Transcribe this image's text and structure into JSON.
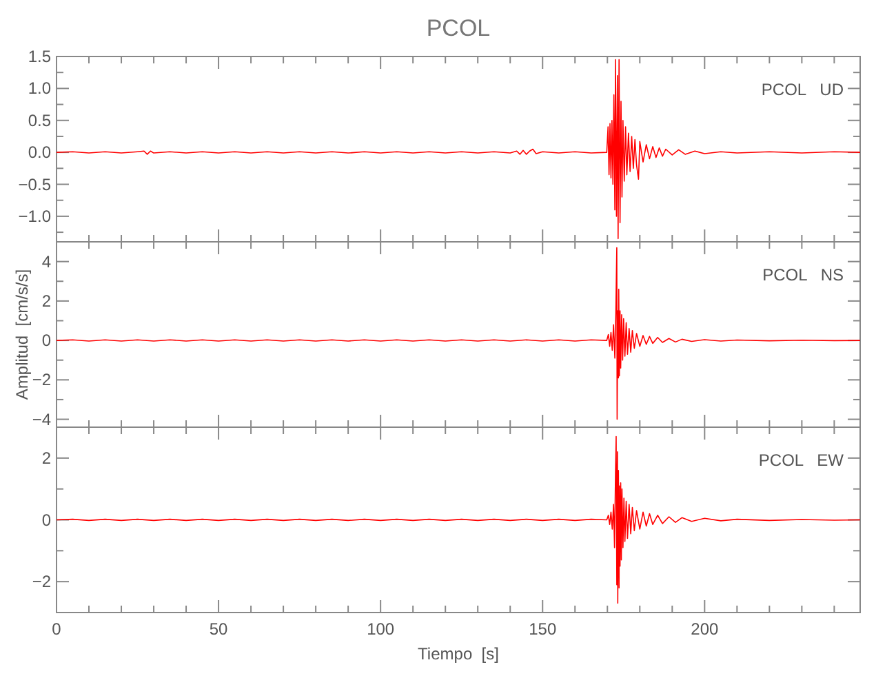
{
  "chart_data": [
    {
      "type": "line",
      "title": "PCOL",
      "annotations": [
        "PCOL   UD"
      ],
      "color": "#ff0000",
      "xlim": [
        0,
        248
      ],
      "ylim": [
        -1.4,
        1.5
      ],
      "tick_labels": "y",
      "xticks": [
        0,
        {
          "value": 10,
          "label": null
        },
        {
          "value": 20,
          "label": null
        },
        {
          "value": 30,
          "label": null
        },
        {
          "value": 40,
          "label": null
        },
        50,
        {
          "value": 60,
          "label": null
        },
        {
          "value": 70,
          "label": null
        },
        {
          "value": 80,
          "label": null
        },
        {
          "value": 90,
          "label": null
        },
        100,
        {
          "value": 110,
          "label": null
        },
        {
          "value": 120,
          "label": null
        },
        {
          "value": 130,
          "label": null
        },
        {
          "value": 140,
          "label": null
        },
        150,
        {
          "value": 160,
          "label": null
        },
        {
          "value": 170,
          "label": null
        },
        {
          "value": 180,
          "label": null
        },
        {
          "value": 190,
          "label": null
        },
        200,
        {
          "value": 210,
          "label": null
        },
        {
          "value": 220,
          "label": null
        },
        {
          "value": 230,
          "label": null
        },
        {
          "value": 240,
          "label": null
        }
      ],
      "yticks": [
        {
          "value": -1.25,
          "label": null
        },
        {
          "value": -1,
          "label": "−1.0"
        },
        {
          "value": -0.75,
          "label": null
        },
        {
          "value": -0.5,
          "label": "−0.5"
        },
        {
          "value": -0.25,
          "label": null
        },
        {
          "value": 0,
          "label": "0.0"
        },
        {
          "value": 0.25,
          "label": null
        },
        {
          "value": 0.5,
          "label": "0.5"
        },
        {
          "value": 0.75,
          "label": null
        },
        {
          "value": 1,
          "label": "1.0"
        },
        {
          "value": 1.25,
          "label": null
        },
        {
          "value": 1.5,
          "label": "1.5"
        }
      ],
      "x": [
        0,
        5,
        10,
        15,
        20,
        25,
        27,
        28,
        29,
        30,
        35,
        40,
        45,
        50,
        55,
        60,
        65,
        70,
        75,
        80,
        85,
        90,
        95,
        100,
        105,
        110,
        115,
        120,
        125,
        130,
        135,
        140,
        142,
        143,
        144,
        145,
        146,
        147,
        148,
        150,
        155,
        160,
        165,
        169.8,
        170.2,
        170.5,
        170.8,
        171.1,
        171.4,
        171.7,
        172,
        172.3,
        172.5,
        172.8,
        173.1,
        173.3,
        173.6,
        173.9,
        174.2,
        174.5,
        174.8,
        175.2,
        175.6,
        176,
        176.5,
        177,
        177.5,
        178,
        178.5,
        179,
        179.6,
        180,
        181,
        182,
        183,
        184,
        185,
        186,
        187,
        188,
        190,
        192,
        194,
        197,
        200,
        205,
        210,
        220,
        230,
        240,
        248
      ],
      "values": [
        0,
        0.01,
        -0.01,
        0.01,
        -0.01,
        0.01,
        0.02,
        -0.03,
        0.02,
        -0.01,
        0.01,
        -0.01,
        0.01,
        -0.01,
        0.01,
        -0.01,
        0.01,
        -0.01,
        0.01,
        -0.01,
        0.01,
        -0.01,
        0.01,
        -0.01,
        0.01,
        -0.01,
        0.01,
        -0.01,
        0.01,
        -0.01,
        0.01,
        -0.01,
        0.02,
        -0.03,
        0.03,
        -0.03,
        0.02,
        0.05,
        -0.02,
        0.01,
        -0.01,
        0.01,
        -0.01,
        0,
        0.4,
        -0.35,
        0.45,
        -0.4,
        0.5,
        -0.5,
        0.9,
        -0.9,
        1.45,
        -1,
        1.2,
        -1.35,
        1.45,
        -1.1,
        0.8,
        -0.7,
        0.5,
        -0.45,
        0.4,
        -0.35,
        0.3,
        -0.3,
        0.25,
        -0.25,
        0.2,
        -0.2,
        -0.42,
        0.17,
        -0.15,
        0.12,
        -0.1,
        0.09,
        -0.08,
        0.07,
        -0.06,
        0.05,
        -0.04,
        0.04,
        -0.03,
        0.02,
        -0.02,
        0.01,
        -0.01,
        0.01,
        -0.01,
        0.01,
        0
      ]
    },
    {
      "type": "line",
      "ylabel": "Amplitud  [cm/s/s]",
      "annotations": [
        "PCOL   NS"
      ],
      "color": "#ff0000",
      "xlim": [
        0,
        248
      ],
      "ylim": [
        -4.4,
        5
      ],
      "tick_labels": "y",
      "xticks": [
        0,
        {
          "value": 10,
          "label": null
        },
        {
          "value": 20,
          "label": null
        },
        {
          "value": 30,
          "label": null
        },
        {
          "value": 40,
          "label": null
        },
        50,
        {
          "value": 60,
          "label": null
        },
        {
          "value": 70,
          "label": null
        },
        {
          "value": 80,
          "label": null
        },
        {
          "value": 90,
          "label": null
        },
        100,
        {
          "value": 110,
          "label": null
        },
        {
          "value": 120,
          "label": null
        },
        {
          "value": 130,
          "label": null
        },
        {
          "value": 140,
          "label": null
        },
        150,
        {
          "value": 160,
          "label": null
        },
        {
          "value": 170,
          "label": null
        },
        {
          "value": 180,
          "label": null
        },
        {
          "value": 190,
          "label": null
        },
        200,
        {
          "value": 210,
          "label": null
        },
        {
          "value": 220,
          "label": null
        },
        {
          "value": 230,
          "label": null
        },
        {
          "value": 240,
          "label": null
        }
      ],
      "yticks": [
        {
          "value": -4,
          "label": "−4"
        },
        {
          "value": -3,
          "label": null
        },
        {
          "value": -2,
          "label": "−2"
        },
        {
          "value": -1,
          "label": null
        },
        0,
        {
          "value": 1,
          "label": null
        },
        2,
        {
          "value": 3,
          "label": null
        },
        4
      ],
      "x": [
        0,
        5,
        10,
        15,
        20,
        25,
        30,
        35,
        40,
        45,
        50,
        55,
        60,
        65,
        70,
        75,
        80,
        85,
        90,
        95,
        100,
        105,
        110,
        115,
        120,
        125,
        130,
        135,
        140,
        145,
        150,
        155,
        160,
        165,
        169.8,
        170.3,
        170.7,
        171.1,
        171.5,
        171.9,
        172.3,
        172.6,
        172.9,
        173,
        173.2,
        173.4,
        173.5,
        173.7,
        173.9,
        174.1,
        174.4,
        174.7,
        175,
        175.4,
        175.8,
        176.2,
        176.7,
        177.2,
        177.7,
        178.3,
        179,
        180,
        181,
        182,
        183,
        184,
        185.5,
        187,
        189,
        191,
        193,
        196,
        200,
        205,
        210,
        220,
        230,
        240,
        248
      ],
      "values": [
        0,
        0.03,
        -0.03,
        0.03,
        -0.03,
        0.03,
        -0.03,
        0.03,
        -0.03,
        0.03,
        -0.03,
        0.03,
        -0.03,
        0.03,
        -0.03,
        0.03,
        -0.03,
        0.03,
        -0.03,
        0.03,
        -0.03,
        0.03,
        -0.03,
        0.03,
        -0.03,
        0.03,
        -0.03,
        0.03,
        -0.03,
        0.03,
        -0.03,
        0.03,
        -0.03,
        0.03,
        0,
        0.3,
        -0.3,
        0.4,
        -0.5,
        0.8,
        -0.9,
        1.4,
        4.7,
        -4,
        1.5,
        -1.9,
        2.6,
        -1.8,
        1.5,
        -1.4,
        1.3,
        -1,
        1.1,
        -0.8,
        0.9,
        -0.7,
        0.6,
        -0.6,
        0.5,
        -0.4,
        0.35,
        -0.3,
        0.25,
        -0.2,
        0.2,
        -0.15,
        0.15,
        -0.1,
        0.1,
        -0.08,
        0.06,
        -0.05,
        0.04,
        -0.03,
        0.02,
        -0.02,
        0.01,
        -0.01,
        0
      ]
    },
    {
      "type": "line",
      "xlabel": "Tiempo  [s]",
      "annotations": [
        "PCOL   EW"
      ],
      "color": "#ff0000",
      "xlim": [
        0,
        248
      ],
      "ylim": [
        -3,
        3
      ],
      "xticks": [
        0,
        {
          "value": 10,
          "label": null
        },
        {
          "value": 20,
          "label": null
        },
        {
          "value": 30,
          "label": null
        },
        {
          "value": 40,
          "label": null
        },
        50,
        {
          "value": 60,
          "label": null
        },
        {
          "value": 70,
          "label": null
        },
        {
          "value": 80,
          "label": null
        },
        {
          "value": 90,
          "label": null
        },
        100,
        {
          "value": 110,
          "label": null
        },
        {
          "value": 120,
          "label": null
        },
        {
          "value": 130,
          "label": null
        },
        {
          "value": 140,
          "label": null
        },
        150,
        {
          "value": 160,
          "label": null
        },
        {
          "value": 170,
          "label": null
        },
        {
          "value": 180,
          "label": null
        },
        {
          "value": 190,
          "label": null
        },
        200,
        {
          "value": 210,
          "label": null
        },
        {
          "value": 220,
          "label": null
        },
        {
          "value": 230,
          "label": null
        },
        {
          "value": 240,
          "label": null
        }
      ],
      "yticks": [
        {
          "value": -2,
          "label": "−2"
        },
        {
          "value": -1,
          "label": null
        },
        0,
        {
          "value": 1,
          "label": null
        },
        2
      ],
      "x": [
        0,
        5,
        10,
        15,
        20,
        25,
        30,
        35,
        40,
        45,
        50,
        55,
        60,
        65,
        70,
        75,
        80,
        85,
        90,
        95,
        100,
        105,
        110,
        115,
        120,
        125,
        130,
        135,
        140,
        145,
        150,
        155,
        160,
        165,
        169.8,
        170.3,
        170.7,
        171.1,
        171.5,
        171.9,
        172.2,
        172.5,
        172.7,
        172.9,
        173.1,
        173.2,
        173.4,
        173.6,
        173.7,
        173.9,
        174.1,
        174.3,
        174.5,
        174.8,
        175.1,
        175.4,
        175.8,
        176.2,
        176.7,
        177.2,
        177.7,
        178.3,
        179,
        180,
        181,
        182,
        183,
        184,
        185.5,
        187,
        189,
        191,
        193,
        196,
        200,
        205,
        210,
        220,
        230,
        240,
        248
      ],
      "values": [
        0,
        0.02,
        -0.02,
        0.02,
        -0.02,
        0.02,
        -0.02,
        0.02,
        -0.02,
        0.02,
        -0.02,
        0.02,
        -0.02,
        0.02,
        -0.02,
        0.02,
        -0.02,
        0.02,
        -0.02,
        0.02,
        -0.02,
        0.02,
        -0.02,
        0.02,
        -0.02,
        0.02,
        -0.02,
        0.02,
        -0.02,
        0.02,
        -0.02,
        0.02,
        -0.02,
        0.02,
        0,
        0.15,
        -0.15,
        0.25,
        -0.3,
        0.5,
        -0.9,
        1.5,
        2.7,
        -2.1,
        2.2,
        -2.7,
        1.6,
        -2.2,
        1.1,
        -1.5,
        1.2,
        -1.3,
        1,
        -0.9,
        0.7,
        -0.7,
        0.6,
        -0.6,
        0.5,
        -0.45,
        0.4,
        -0.35,
        0.3,
        -0.3,
        0.25,
        -0.2,
        0.2,
        -0.15,
        0.15,
        -0.12,
        0.1,
        -0.08,
        0.07,
        -0.05,
        0.05,
        -0.03,
        0.02,
        -0.02,
        0.01,
        -0.01,
        0
      ]
    }
  ]
}
